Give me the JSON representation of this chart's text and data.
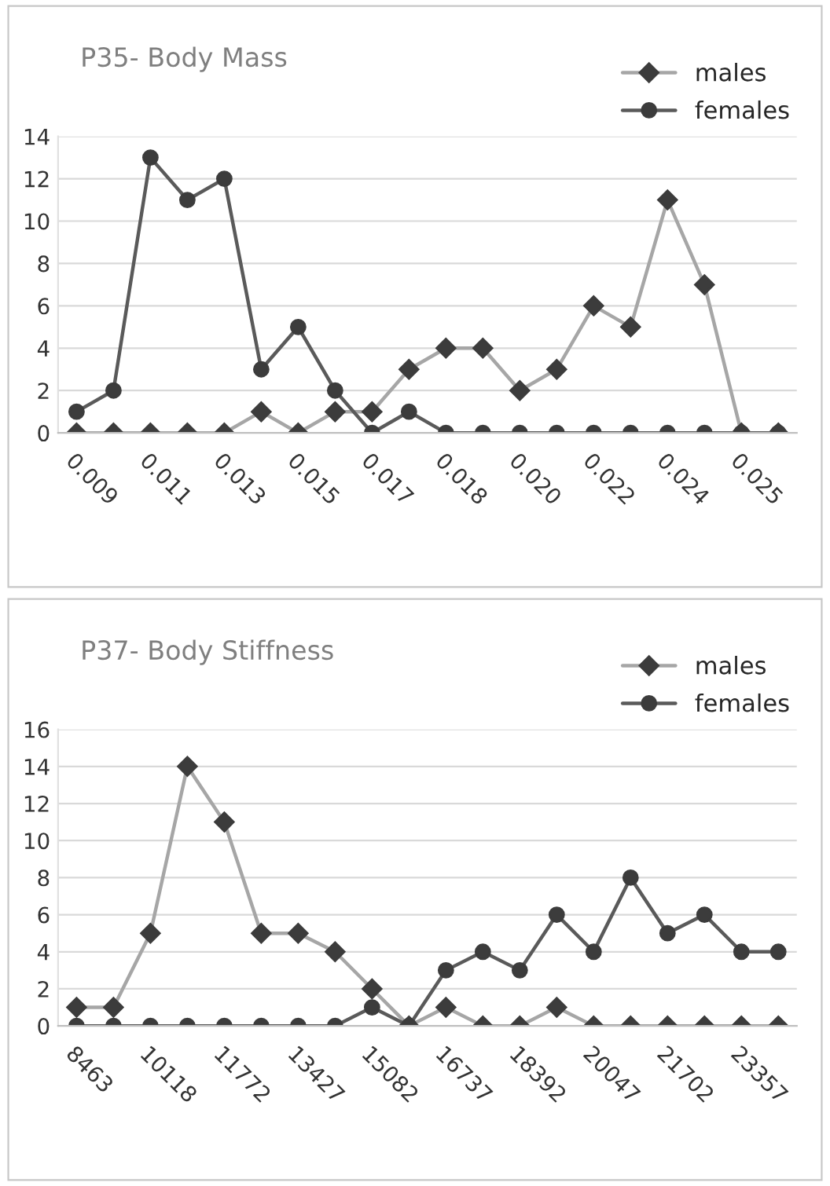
{
  "chart_data": [
    {
      "type": "line",
      "title": "P35- Body Mass",
      "categories": [
        "0.009",
        null,
        "0.011",
        null,
        "0.013",
        null,
        "0.015",
        null,
        "0.017",
        null,
        "0.018",
        null,
        "0.020",
        null,
        "0.022",
        null,
        "0.024",
        null,
        "0.025",
        null
      ],
      "series": [
        {
          "name": "males",
          "color": "#a6a6a6",
          "marker": "diamond",
          "values": [
            0,
            0,
            0,
            0,
            0,
            1,
            0,
            1,
            1,
            3,
            4,
            4,
            2,
            3,
            6,
            5,
            11,
            7,
            0,
            0
          ]
        },
        {
          "name": "females",
          "color": "#5a5a5a",
          "marker": "circle",
          "values": [
            1,
            2,
            13,
            11,
            12,
            3,
            5,
            2,
            0,
            1,
            0,
            0,
            0,
            0,
            0,
            0,
            0,
            0,
            0,
            0
          ]
        }
      ],
      "ylim": [
        0,
        14
      ],
      "yticks": [
        0,
        2,
        4,
        6,
        8,
        10,
        12,
        14
      ],
      "grid": "y",
      "legend": "top right"
    },
    {
      "type": "line",
      "title": "P37- Body Stiffness",
      "categories": [
        "8463",
        null,
        "10118",
        null,
        "11772",
        null,
        "13427",
        null,
        "15082",
        null,
        "16737",
        null,
        "18392",
        null,
        "20047",
        null,
        "21702",
        null,
        "23357",
        null
      ],
      "series": [
        {
          "name": "males",
          "color": "#a6a6a6",
          "marker": "diamond",
          "values": [
            1,
            1,
            5,
            14,
            11,
            5,
            5,
            4,
            2,
            0,
            1,
            0,
            0,
            1,
            0,
            0,
            0,
            0,
            0,
            0
          ]
        },
        {
          "name": "females",
          "color": "#5a5a5a",
          "marker": "circle",
          "values": [
            0,
            0,
            0,
            0,
            0,
            0,
            0,
            0,
            1,
            0,
            3,
            4,
            3,
            6,
            4,
            8,
            5,
            6,
            4,
            4
          ]
        }
      ],
      "ylim": [
        0,
        16
      ],
      "yticks": [
        0,
        2,
        4,
        6,
        8,
        10,
        12,
        14,
        16
      ],
      "grid": "y",
      "legend": "top right"
    }
  ]
}
